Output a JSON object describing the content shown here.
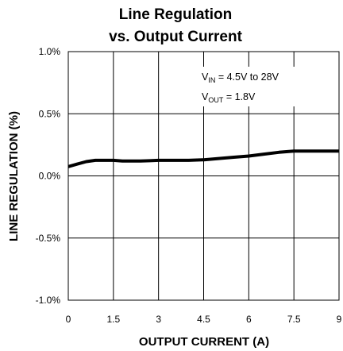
{
  "chart_data": {
    "type": "line",
    "title_line1": "Line Regulation",
    "title_line2": "vs. Output Current",
    "xlabel": "OUTPUT CURRENT (A)",
    "ylabel": "LINE REGULATION (%)",
    "xlim": [
      0,
      9
    ],
    "ylim": [
      -1.0,
      1.0
    ],
    "x_ticks": [
      0,
      1.5,
      3,
      4.5,
      6,
      7.5,
      9
    ],
    "x_tick_labels": [
      "0",
      "1.5",
      "3",
      "4.5",
      "6",
      "7.5",
      "9"
    ],
    "y_ticks": [
      1.0,
      0.5,
      0.0,
      -0.5,
      -1.0
    ],
    "y_tick_labels": [
      "1.0%",
      "0.5%",
      "0.0%",
      "-0.5%",
      "-1.0%"
    ],
    "grid": true,
    "annotations": [
      {
        "main": "V",
        "sub": "IN",
        "rest": " = 4.5V to 28V"
      },
      {
        "main": "V",
        "sub": "OUT",
        "rest": " = 1.8V"
      }
    ],
    "series": [
      {
        "color": "#000000",
        "x": [
          0,
          0.3,
          0.6,
          0.9,
          1.2,
          1.5,
          1.8,
          2.1,
          2.4,
          2.7,
          3.0,
          3.5,
          4.0,
          4.5,
          5.0,
          5.5,
          6.0,
          6.5,
          7.0,
          7.5,
          8.0,
          8.5,
          9.0
        ],
        "y": [
          0.075,
          0.095,
          0.115,
          0.125,
          0.125,
          0.125,
          0.12,
          0.12,
          0.12,
          0.122,
          0.125,
          0.125,
          0.125,
          0.13,
          0.14,
          0.15,
          0.16,
          0.175,
          0.19,
          0.2,
          0.2,
          0.2,
          0.2
        ]
      }
    ]
  }
}
